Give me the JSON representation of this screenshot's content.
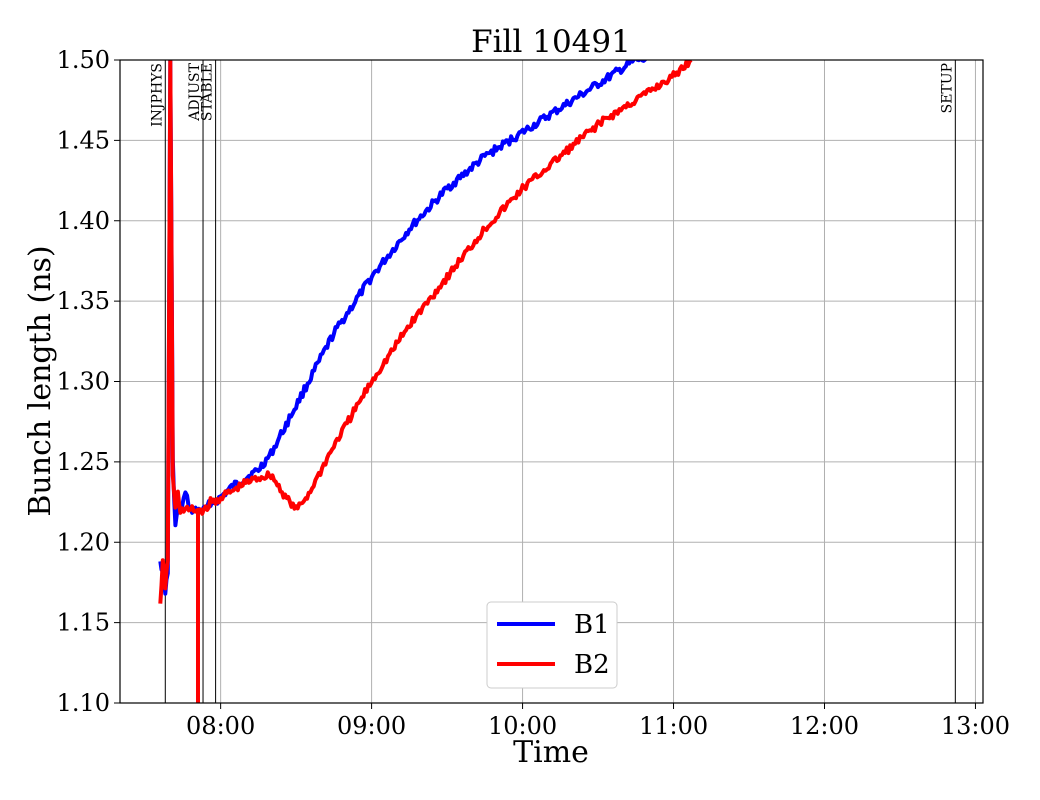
{
  "chart_data": {
    "type": "line",
    "title": "Fill 10491",
    "xlabel": "Time",
    "ylabel": "Bunch length (ns)",
    "xlim": [
      "07:20",
      "13:03"
    ],
    "ylim": [
      1.1,
      1.5
    ],
    "x_ticks": [
      "08:00",
      "09:00",
      "10:00",
      "11:00",
      "12:00",
      "13:00"
    ],
    "y_ticks": [
      "1.10",
      "1.15",
      "1.20",
      "1.25",
      "1.30",
      "1.35",
      "1.40",
      "1.45",
      "1.50"
    ],
    "grid": true,
    "legend_position": "bottom-center",
    "series": [
      {
        "name": "B1",
        "color": "#0000ff",
        "x": [
          "07:36",
          "07:37",
          "07:38",
          "07:39",
          "07:40",
          "07:41",
          "07:42",
          "07:43",
          "07:44",
          "07:46",
          "07:48",
          "07:50",
          "07:52",
          "07:54",
          "07:56",
          "07:58",
          "08:00",
          "08:05",
          "08:10",
          "08:15",
          "08:20",
          "08:30",
          "08:45",
          "09:00",
          "09:15",
          "09:30",
          "09:45",
          "10:00",
          "10:15",
          "10:30",
          "10:45",
          "10:50"
        ],
        "y": [
          1.19,
          1.18,
          1.17,
          1.18,
          1.5,
          1.25,
          1.21,
          1.22,
          1.22,
          1.23,
          1.22,
          1.22,
          1.22,
          1.22,
          1.225,
          1.225,
          1.228,
          1.235,
          1.24,
          1.245,
          1.255,
          1.285,
          1.33,
          1.365,
          1.395,
          1.42,
          1.44,
          1.455,
          1.47,
          1.485,
          1.5,
          1.5
        ]
      },
      {
        "name": "B2",
        "color": "#ff0000",
        "x": [
          "07:36",
          "07:37",
          "07:38",
          "07:39",
          "07:40",
          "07:41",
          "07:42",
          "07:43",
          "07:44",
          "07:46",
          "07:48",
          "07:50",
          "07:52",
          "07:54",
          "07:56",
          "07:58",
          "08:00",
          "08:05",
          "08:10",
          "08:15",
          "08:20",
          "08:25",
          "08:30",
          "08:35",
          "08:45",
          "09:00",
          "09:15",
          "09:30",
          "09:45",
          "10:00",
          "10:15",
          "10:30",
          "10:45",
          "11:00",
          "11:07"
        ],
        "y": [
          1.16,
          1.19,
          1.17,
          1.19,
          1.5,
          1.24,
          1.22,
          1.23,
          1.22,
          1.22,
          1.22,
          1.22,
          1.22,
          1.22,
          1.225,
          1.225,
          1.228,
          1.232,
          1.237,
          1.24,
          1.242,
          1.23,
          1.22,
          1.23,
          1.26,
          1.3,
          1.335,
          1.365,
          1.395,
          1.42,
          1.44,
          1.46,
          1.475,
          1.49,
          1.5
        ]
      }
    ],
    "b2_dropout": {
      "x": "07:51",
      "y_from": 1.22,
      "y_to": 1.1
    },
    "markers": [
      {
        "label": "INJPHYS",
        "time": "07:38"
      },
      {
        "label": "ADJUST",
        "time": "07:53"
      },
      {
        "label": "STABLE",
        "time": "07:58"
      },
      {
        "label": "SETUP",
        "time": "12:52"
      }
    ]
  }
}
